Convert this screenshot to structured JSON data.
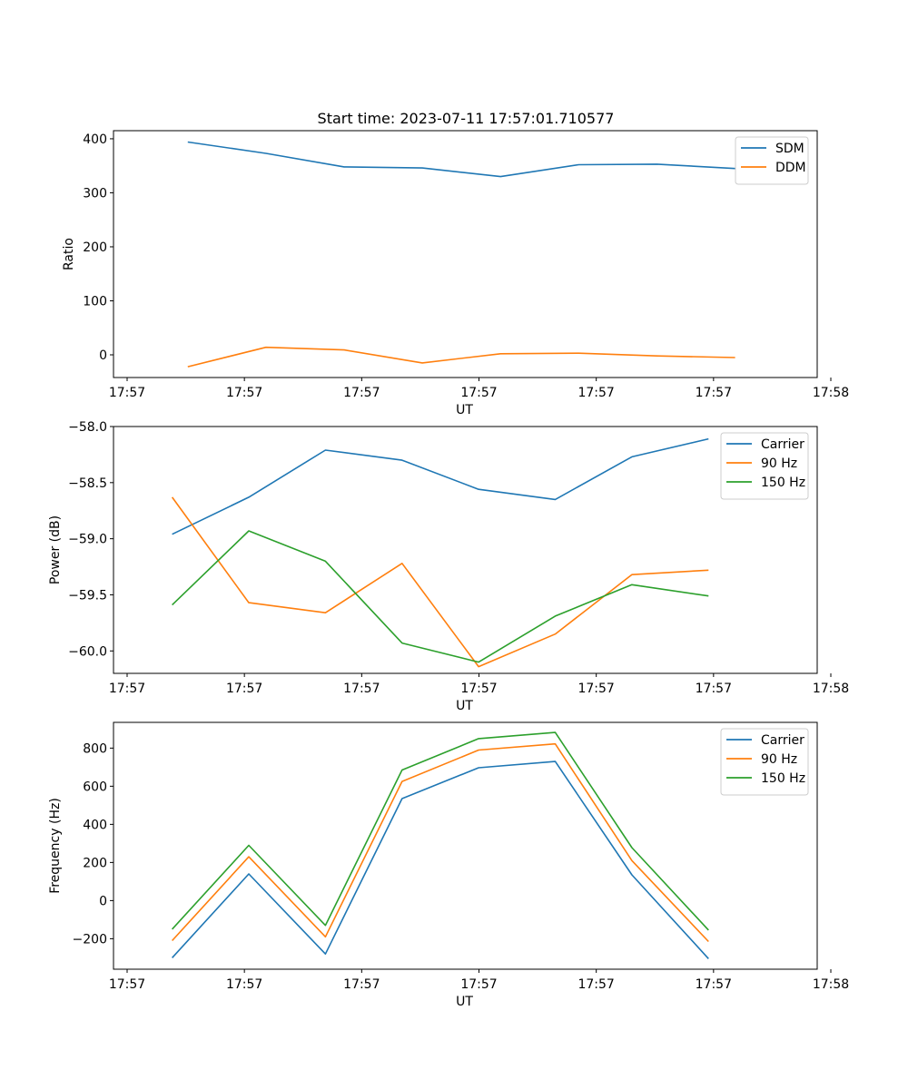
{
  "figure_title": "Start time: 2023-07-11 17:57:01.710577",
  "colors": {
    "blue": "#1f77b4",
    "orange": "#ff7f0e",
    "green": "#2ca02c"
  },
  "chart_data": [
    {
      "type": "line",
      "title": "Start time: 2023-07-11 17:57:01.710577",
      "xlabel": "UT",
      "ylabel": "Ratio",
      "xlim": [
        0,
        9.0
      ],
      "x": [
        0.95,
        1.95,
        2.95,
        3.95,
        4.95,
        5.95,
        6.95,
        7.95
      ],
      "ylim": [
        -42,
        415
      ],
      "yticks": [
        0,
        100,
        200,
        300,
        400
      ],
      "ytick_labels": [
        "0",
        "100",
        "200",
        "300",
        "400"
      ],
      "xticks": [
        0,
        1.5,
        3,
        4.5,
        6,
        7.5,
        9
      ],
      "xtick_labels": [
        "17:57",
        "17:57",
        "17:57",
        "17:57",
        "17:57",
        "17:57",
        "17:58"
      ],
      "legend_position": "top-right",
      "series": [
        {
          "name": "SDM",
          "color": "#1f77b4",
          "values": [
            394,
            373,
            348,
            346,
            330,
            352,
            353,
            345
          ]
        },
        {
          "name": "DDM",
          "color": "#ff7f0e",
          "values": [
            -22,
            14,
            9,
            -15,
            2,
            3,
            -2,
            -5
          ]
        }
      ]
    },
    {
      "type": "line",
      "title": "",
      "xlabel": "UT",
      "ylabel": "Power (dB)",
      "xlim": [
        0,
        9.0
      ],
      "x": [
        0.75,
        1.73,
        2.71,
        3.69,
        4.67,
        5.65,
        6.63,
        7.61
      ],
      "ylim": [
        -60.2,
        -58.0
      ],
      "yticks": [
        -60.0,
        -59.5,
        -59.0,
        -58.5,
        -58.0
      ],
      "ytick_labels": [
        "−60.0",
        "−59.5",
        "−59.0",
        "−58.5",
        "−58.0"
      ],
      "xticks": [
        0,
        1.5,
        3,
        4.5,
        6,
        7.5,
        9
      ],
      "xtick_labels": [
        "17:57",
        "17:57",
        "17:57",
        "17:57",
        "17:57",
        "17:57",
        "17:58"
      ],
      "legend_position": "top-right",
      "series": [
        {
          "name": "Carrier",
          "color": "#1f77b4",
          "values": [
            -58.96,
            -58.63,
            -58.21,
            -58.3,
            -58.56,
            -58.65,
            -58.27,
            -58.11
          ]
        },
        {
          "name": "90 Hz",
          "color": "#ff7f0e",
          "values": [
            -58.63,
            -59.57,
            -59.66,
            -59.22,
            -60.14,
            -59.85,
            -59.32,
            -59.28
          ]
        },
        {
          "name": "150 Hz",
          "color": "#2ca02c",
          "values": [
            -59.59,
            -58.93,
            -59.2,
            -59.93,
            -60.1,
            -59.69,
            -59.41,
            -59.51
          ]
        }
      ]
    },
    {
      "type": "line",
      "title": "",
      "xlabel": "UT",
      "ylabel": "Frequency (Hz)",
      "xlim": [
        0,
        9.0
      ],
      "x": [
        0.75,
        1.73,
        2.71,
        3.69,
        4.67,
        5.65,
        6.63,
        7.61
      ],
      "ylim": [
        -360,
        935
      ],
      "yticks": [
        -200,
        0,
        200,
        400,
        600,
        800
      ],
      "ytick_labels": [
        "−200",
        "0",
        "200",
        "400",
        "600",
        "800"
      ],
      "xticks": [
        0,
        1.5,
        3,
        4.5,
        6,
        7.5,
        9
      ],
      "xtick_labels": [
        "17:57",
        "17:57",
        "17:57",
        "17:57",
        "17:57",
        "17:57",
        "17:58"
      ],
      "legend_position": "top-right",
      "series": [
        {
          "name": "Carrier",
          "color": "#1f77b4",
          "values": [
            -300,
            140,
            -280,
            535,
            697,
            730,
            135,
            -305
          ]
        },
        {
          "name": "90 Hz",
          "color": "#ff7f0e",
          "values": [
            -210,
            230,
            -190,
            625,
            790,
            822,
            210,
            -215
          ]
        },
        {
          "name": "150 Hz",
          "color": "#2ca02c",
          "values": [
            -150,
            290,
            -130,
            685,
            850,
            882,
            278,
            -155
          ]
        }
      ]
    }
  ]
}
